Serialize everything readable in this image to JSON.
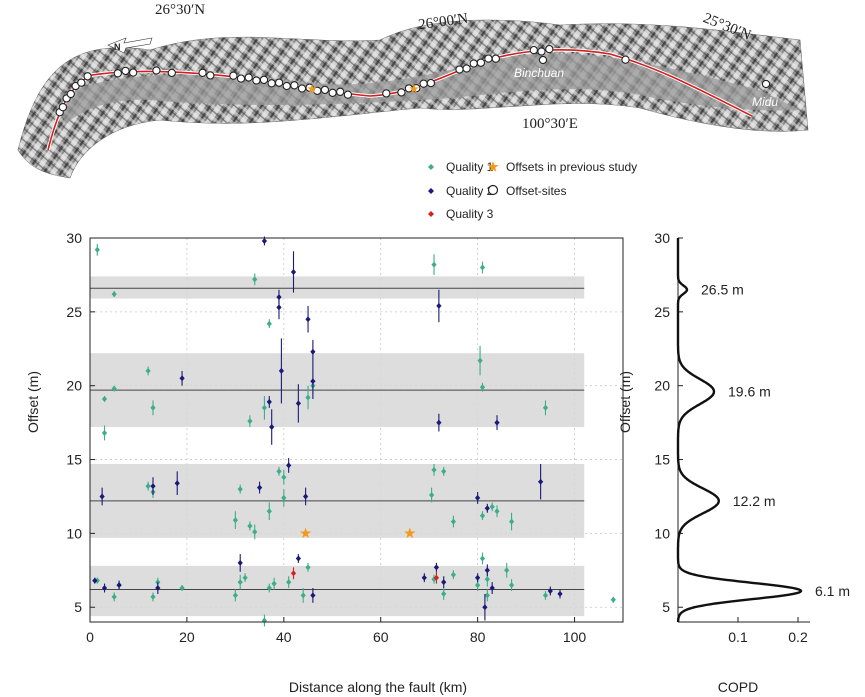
{
  "map": {
    "lat_labels": [
      "26°30′N",
      "26°00′N",
      "25°30′N"
    ],
    "lon_label": "100°30′E",
    "place_labels": [
      "Binchuan",
      "Midu"
    ]
  },
  "legend": {
    "items": [
      {
        "label": "Quality 1",
        "color": "#3dae8a",
        "symbol": "diamond"
      },
      {
        "label": "Quality 2",
        "color": "#1a1a78",
        "symbol": "diamond"
      },
      {
        "label": "Quality 3",
        "color": "#d62020",
        "symbol": "diamond"
      },
      {
        "label": "Offsets in previous study",
        "color": "#f39a1b",
        "symbol": "star"
      },
      {
        "label": "Offset-sites",
        "color": "#222222",
        "symbol": "open-circle"
      }
    ]
  },
  "chart_data": [
    {
      "type": "scatter",
      "xlabel": "Distance along the fault (km)",
      "ylabel": "Offset (m)",
      "xlim": [
        0,
        110
      ],
      "ylim": [
        4,
        30
      ],
      "xticks": [
        "0",
        "20",
        "40",
        "60",
        "80",
        "100"
      ],
      "yticks": [
        "5",
        "10",
        "15",
        "20",
        "25",
        "30"
      ],
      "grid": true,
      "bands": [
        {
          "center": 26.6,
          "low": 25.9,
          "high": 27.4
        },
        {
          "center": 19.7,
          "low": 17.2,
          "high": 22.2
        },
        {
          "center": 12.2,
          "low": 9.7,
          "high": 14.7
        },
        {
          "center": 6.2,
          "low": 4.4,
          "high": 7.8
        }
      ],
      "series": [
        {
          "name": "Quality 1",
          "color": "#3dae8a",
          "points": [
            [
              1.5,
              29.2,
              0.4
            ],
            [
              5,
              26.2,
              0.2
            ],
            [
              3,
              19.1,
              0.2
            ],
            [
              5,
              19.8,
              0.2
            ],
            [
              3,
              16.8,
              0.5
            ],
            [
              12,
              21,
              0.3
            ],
            [
              13,
              18.5,
              0.5
            ],
            [
              12,
              13.2,
              0.3
            ],
            [
              13,
              12.8,
              0.4
            ],
            [
              31,
              13,
              0.3
            ],
            [
              30,
              10.9,
              0.6
            ],
            [
              33,
              10.5,
              0.3
            ],
            [
              34,
              10.1,
              0.5
            ],
            [
              37,
              11.5,
              0.6
            ],
            [
              37,
              24.2,
              0.3
            ],
            [
              34,
              27.2,
              0.4
            ],
            [
              33,
              17.6,
              0.4
            ],
            [
              36,
              18.5,
              0.8
            ],
            [
              39,
              14.2,
              0.3
            ],
            [
              40,
              13.8,
              0.5
            ],
            [
              40,
              12.4,
              0.6
            ],
            [
              45,
              19.2,
              0.8
            ],
            [
              46,
              20,
              0.5
            ],
            [
              71,
              28.2,
              0.7
            ],
            [
              81,
              28,
              0.4
            ],
            [
              80.5,
              21.7,
              1.0
            ],
            [
              81,
              19.9,
              0.3
            ],
            [
              94,
              18.5,
              0.5
            ],
            [
              71,
              14.3,
              0.4
            ],
            [
              73,
              14.2,
              0.3
            ],
            [
              70.5,
              12.6,
              0.5
            ],
            [
              75,
              10.8,
              0.4
            ],
            [
              81,
              11.2,
              0.3
            ],
            [
              83,
              11.8,
              0.3
            ],
            [
              84,
              11.5,
              0.4
            ],
            [
              87,
              10.8,
              0.6
            ],
            [
              81,
              8.3,
              0.4
            ],
            [
              1.5,
              6.8,
              0.2
            ],
            [
              5,
              5.7,
              0.3
            ],
            [
              6,
              6.5,
              0.3
            ],
            [
              13,
              5.7,
              0.3
            ],
            [
              14,
              6.7,
              0.3
            ],
            [
              19,
              6.3,
              0.2
            ],
            [
              30,
              5.8,
              0.4
            ],
            [
              31,
              6.7,
              0.5
            ],
            [
              32,
              7,
              0.3
            ],
            [
              36,
              4.1,
              0.4
            ],
            [
              37,
              6.3,
              0.3
            ],
            [
              38,
              6.6,
              0.4
            ],
            [
              41,
              6.7,
              0.4
            ],
            [
              44,
              5.8,
              0.5
            ],
            [
              45,
              7.7,
              0.3
            ],
            [
              71,
              6.9,
              0.3
            ],
            [
              73,
              5.9,
              0.4
            ],
            [
              75,
              7.2,
              0.3
            ],
            [
              80,
              6.5,
              0.4
            ],
            [
              82,
              5.8,
              0.4
            ],
            [
              82,
              6.9,
              0.5
            ],
            [
              86,
              7.5,
              0.5
            ],
            [
              87,
              6.5,
              0.4
            ],
            [
              94,
              5.8,
              0.3
            ],
            [
              108,
              5.5,
              0.2
            ]
          ]
        },
        {
          "name": "Quality 2",
          "color": "#1a1a78",
          "points": [
            [
              36,
              29.8,
              0.3
            ],
            [
              42,
              27.7,
              1.4
            ],
            [
              39,
              26,
              0.5
            ],
            [
              39,
              25.3,
              0.8
            ],
            [
              45,
              24.5,
              0.9
            ],
            [
              72,
              25.4,
              1.1
            ],
            [
              19,
              20.5,
              0.5
            ],
            [
              39.5,
              21,
              2.2
            ],
            [
              46,
              22.3,
              0.8
            ],
            [
              46,
              20.3,
              1.2
            ],
            [
              37,
              18.9,
              0.4
            ],
            [
              43,
              18.8,
              1.3
            ],
            [
              37.5,
              17.2,
              1.2
            ],
            [
              72,
              17.5,
              0.6
            ],
            [
              84,
              17.5,
              0.5
            ],
            [
              2.5,
              12.5,
              0.6
            ],
            [
              13,
              13.2,
              0.6
            ],
            [
              18,
              13.4,
              0.8
            ],
            [
              35,
              13.1,
              0.4
            ],
            [
              41,
              14.6,
              0.5
            ],
            [
              44.5,
              12.5,
              0.6
            ],
            [
              80,
              12.4,
              0.4
            ],
            [
              82,
              11.7,
              0.3
            ],
            [
              93,
              13.5,
              1.2
            ],
            [
              1,
              6.8,
              0.2
            ],
            [
              3,
              6.3,
              0.3
            ],
            [
              6,
              6.5,
              0.3
            ],
            [
              14,
              6.3,
              0.4
            ],
            [
              31,
              8,
              0.6
            ],
            [
              43,
              8.3,
              0.3
            ],
            [
              46,
              5.8,
              0.5
            ],
            [
              69,
              7,
              0.3
            ],
            [
              71.5,
              7.7,
              0.3
            ],
            [
              73,
              6.7,
              0.4
            ],
            [
              80,
              7,
              0.3
            ],
            [
              81.5,
              5,
              0.9
            ],
            [
              82,
              7.5,
              0.4
            ],
            [
              83,
              6.3,
              0.4
            ],
            [
              95,
              6.1,
              0.3
            ],
            [
              97,
              5.9,
              0.3
            ]
          ]
        },
        {
          "name": "Quality 3",
          "color": "#d62020",
          "points": [
            [
              42,
              7.3,
              0.4
            ],
            [
              71.5,
              7,
              0.4
            ]
          ]
        },
        {
          "name": "Offsets in previous study",
          "color": "#f39a1b",
          "points": [
            [
              44.5,
              10,
              0
            ],
            [
              66,
              10,
              0
            ]
          ]
        }
      ]
    },
    {
      "type": "line",
      "xlabel": "COPD",
      "ylabel": "Offset (m)",
      "xlim": [
        0,
        0.22
      ],
      "ylim": [
        4,
        30
      ],
      "xticks": [
        "0.1",
        "0.2"
      ],
      "yticks": [
        "5",
        "10",
        "15",
        "20",
        "25",
        "30"
      ],
      "peaks": [
        {
          "offset": 26.5,
          "density": 0.015,
          "sigma": 0.28,
          "label": "26.5 m"
        },
        {
          "offset": 19.6,
          "density": 0.06,
          "sigma": 0.85,
          "label": "19.6 m"
        },
        {
          "offset": 12.2,
          "density": 0.068,
          "sigma": 0.85,
          "label": "12.2 m"
        },
        {
          "offset": 6.1,
          "density": 0.205,
          "sigma": 0.55,
          "label": "6.1 m"
        }
      ]
    }
  ]
}
